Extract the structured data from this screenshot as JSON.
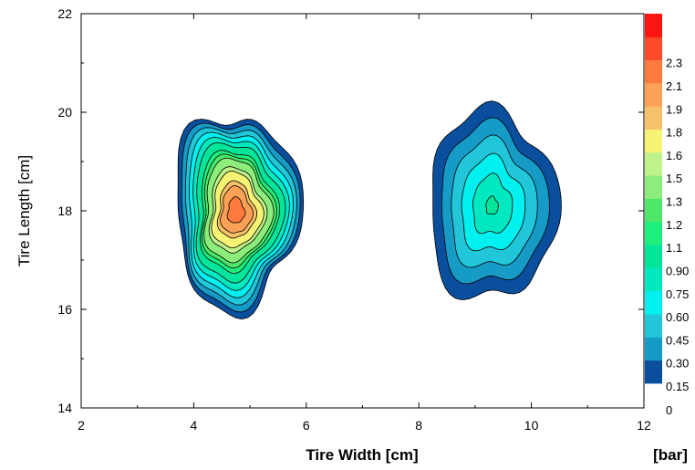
{
  "chart_data": {
    "type": "heatmap",
    "subtype": "filled-contour",
    "xlabel": "Tire Width [cm]",
    "ylabel": "Tire Length [cm]",
    "xlim": [
      2,
      12
    ],
    "ylim": [
      14,
      22
    ],
    "xticks": [
      2,
      4,
      6,
      8,
      10,
      12
    ],
    "yticks": [
      14,
      16,
      18,
      20,
      22
    ],
    "grid": false,
    "colorbar": {
      "unit_label": "[bar]",
      "levels": [
        "0",
        "0.15",
        "0.30",
        "0.45",
        "0.60",
        "0.75",
        "0.90",
        "1.1",
        "1.2",
        "1.3",
        "1.5",
        "1.6",
        "1.8",
        "1.9",
        "2.1",
        "2.3"
      ],
      "colors": [
        "#0a4f9e",
        "#169ac6",
        "#21c7d9",
        "#00f0f0",
        "#00e8c0",
        "#00e59a",
        "#1ef07d",
        "#4de86a",
        "#8ced7a",
        "#bff28a",
        "#f6f274",
        "#f6c16a",
        "#fca156",
        "#ff7a3c",
        "#ff4a29",
        "#ff1414"
      ]
    },
    "peaks": [
      {
        "x": 4.75,
        "y": 18.0,
        "value": 2.3,
        "spread_x": 1.15,
        "spread_y": 2.05
      },
      {
        "x": 9.3,
        "y": 18.1,
        "value": 0.95,
        "spread_x": 1.25,
        "spread_y": 2.1
      }
    ]
  }
}
